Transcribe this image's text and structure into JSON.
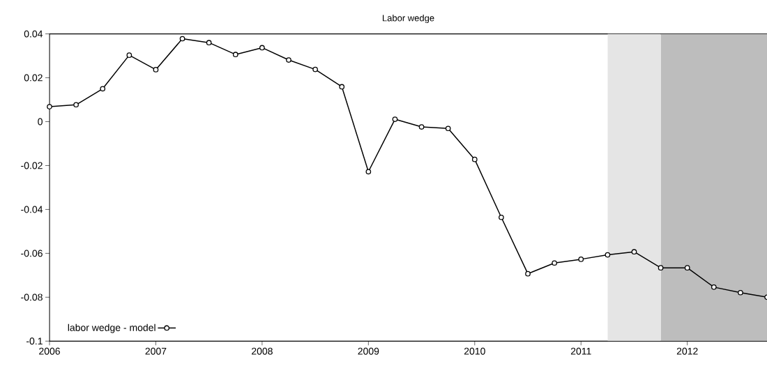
{
  "chart_data": {
    "type": "line",
    "title": "Labor wedge",
    "x": [
      2006.0,
      2006.25,
      2006.5,
      2006.75,
      2007.0,
      2007.25,
      2007.5,
      2007.75,
      2008.0,
      2008.25,
      2008.5,
      2008.75,
      2009.0,
      2009.25,
      2009.5,
      2009.75,
      2010.0,
      2010.25,
      2010.5,
      2010.75,
      2011.0,
      2011.25,
      2011.5,
      2011.75,
      2012.0,
      2012.25,
      2012.5,
      2012.75
    ],
    "series": [
      {
        "name": "labor wedge - model",
        "color": "#000000",
        "values": [
          0.0068,
          0.0077,
          0.015,
          0.0303,
          0.0237,
          0.0378,
          0.036,
          0.0306,
          0.0337,
          0.0281,
          0.0238,
          0.0159,
          -0.0228,
          0.0011,
          -0.0024,
          -0.0031,
          -0.0172,
          -0.0436,
          -0.0693,
          -0.0644,
          -0.0627,
          -0.0607,
          -0.0593,
          -0.0666,
          -0.0666,
          -0.0754,
          -0.0779,
          -0.08
        ]
      }
    ],
    "xlim": [
      2006,
      2012.75
    ],
    "xticks": [
      2006,
      2007,
      2008,
      2009,
      2010,
      2011,
      2012
    ],
    "ylim": [
      -0.1,
      0.04
    ],
    "yticks": [
      -0.1,
      -0.08,
      -0.06,
      -0.04,
      -0.02,
      0,
      0.02,
      0.04
    ],
    "bands": [
      {
        "axis": "x",
        "from": 2011.25,
        "to": 2011.75,
        "color": "#e5e5e5"
      },
      {
        "axis": "x",
        "from": 2011.75,
        "to": 2012.75,
        "color": "#bdbdbd"
      }
    ],
    "marker": "circle",
    "line_style": "solid",
    "legend": "bottom left",
    "grid": false
  }
}
